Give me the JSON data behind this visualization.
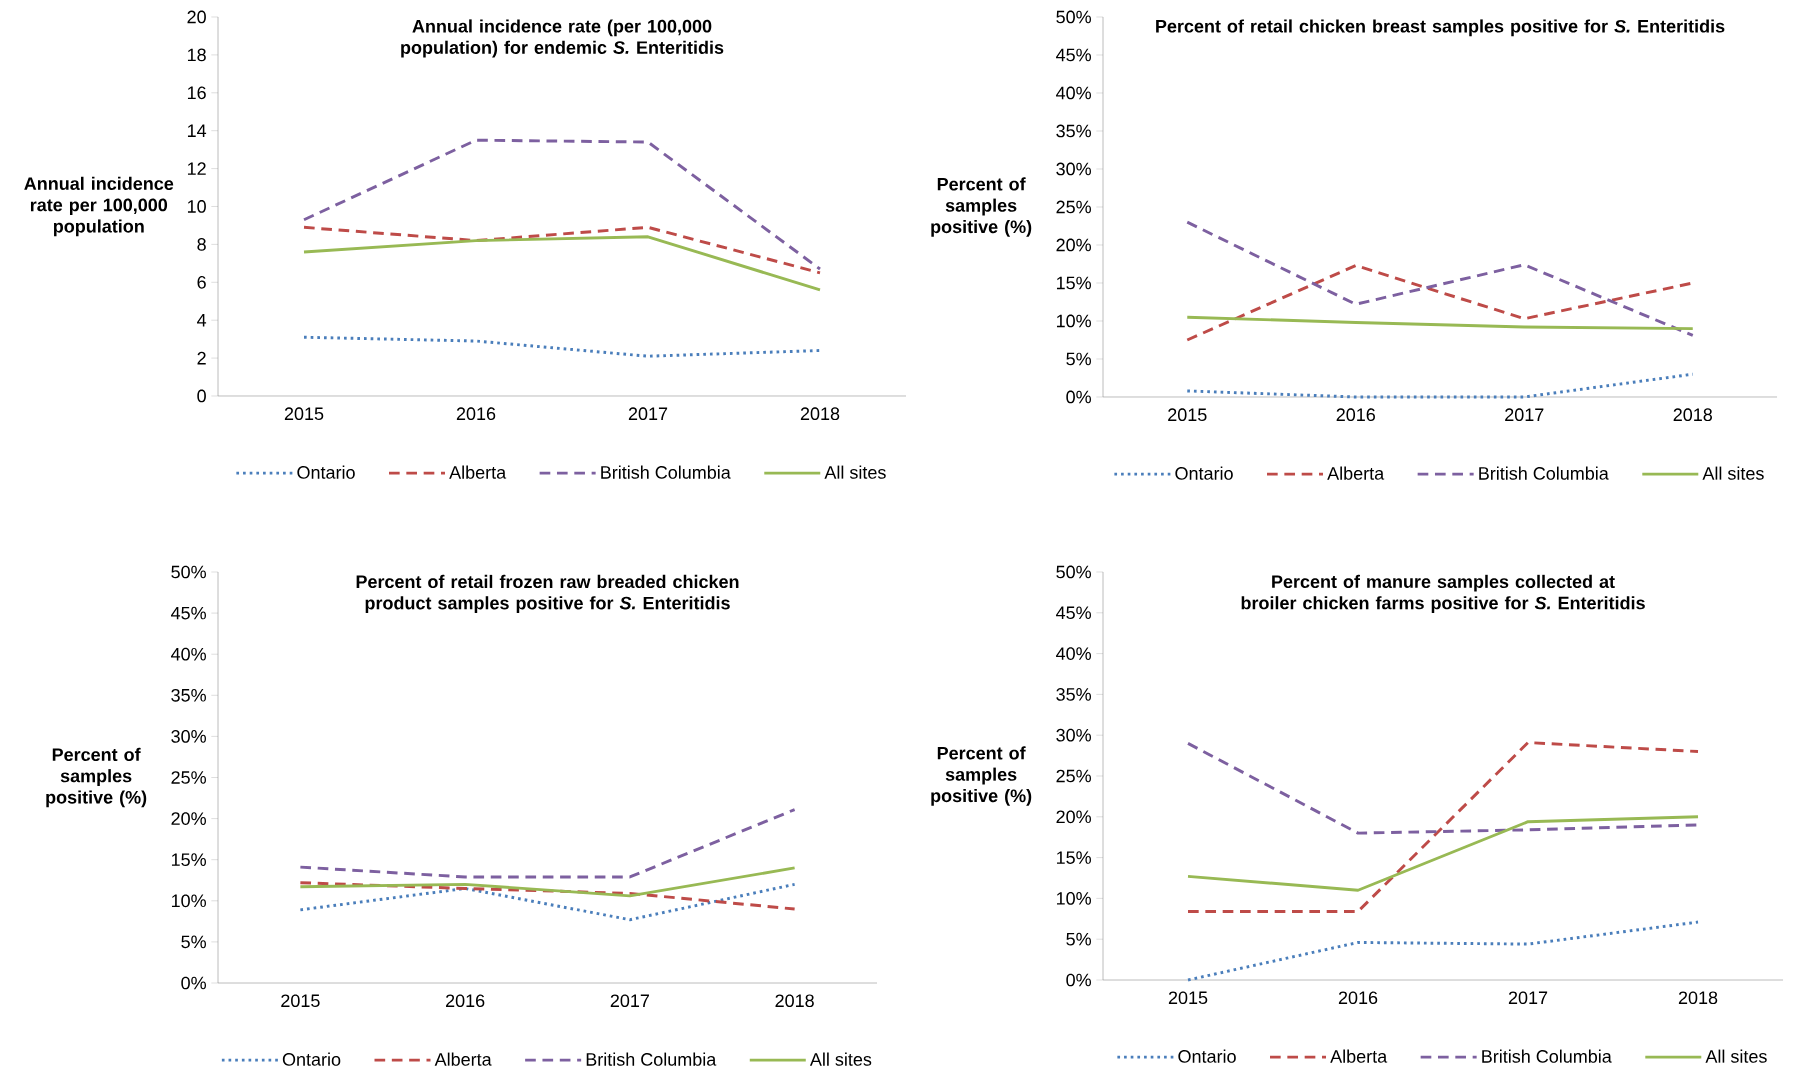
{
  "chart_data": [
    {
      "type": "line",
      "title": "Annual incidence rate (per 100,000 population) for endemic *S.* Enteritidis",
      "ylabel": "Annual incidence rate per 100,000 population",
      "categories": [
        "2015",
        "2016",
        "2017",
        "2018"
      ],
      "series": [
        {
          "name": "Ontario",
          "color": "#4a7ebb",
          "line_style": "dotted",
          "values": [
            3.1,
            2.9,
            2.1,
            2.4
          ]
        },
        {
          "name": "Alberta",
          "color": "#be4b48",
          "line_style": "dashed",
          "values": [
            8.9,
            8.2,
            8.9,
            6.5
          ]
        },
        {
          "name": "British Columbia",
          "color": "#7d60a0",
          "line_style": "dashed",
          "values": [
            9.3,
            13.5,
            13.4,
            6.7
          ]
        },
        {
          "name": "All sites",
          "color": "#98b954",
          "line_style": "solid",
          "values": [
            7.6,
            8.2,
            8.4,
            5.6
          ]
        }
      ],
      "ylim": [
        0,
        20
      ],
      "yticks": [
        0,
        2,
        4,
        6,
        8,
        10,
        12,
        14,
        16,
        18,
        20
      ],
      "legend": "bottom"
    },
    {
      "type": "line",
      "title": "Percent of retail chicken breast samples positive for *S.* Enteritidis",
      "ylabel": "Percent of samples positive (%)",
      "categories": [
        "2015",
        "2016",
        "2017",
        "2018"
      ],
      "series": [
        {
          "name": "Ontario",
          "color": "#4a7ebb",
          "line_style": "dotted",
          "values": [
            0.8,
            0,
            0,
            3.0
          ]
        },
        {
          "name": "Alberta",
          "color": "#be4b48",
          "line_style": "dashed",
          "values": [
            7.5,
            17.3,
            10.3,
            15.0
          ]
        },
        {
          "name": "British Columbia",
          "color": "#7d60a0",
          "line_style": "dashed",
          "values": [
            23.0,
            12.2,
            17.4,
            8.1
          ]
        },
        {
          "name": "All sites",
          "color": "#98b954",
          "line_style": "solid",
          "values": [
            10.5,
            9.8,
            9.2,
            9.0
          ]
        }
      ],
      "ylim": [
        0,
        50
      ],
      "yticks": [
        {
          "value": 0,
          "label": "0%"
        },
        {
          "value": 5,
          "label": "5%"
        },
        {
          "value": 10,
          "label": "10%"
        },
        {
          "value": 15,
          "label": "15%"
        },
        {
          "value": 20,
          "label": "20%"
        },
        {
          "value": 25,
          "label": "25%"
        },
        {
          "value": 30,
          "label": "30%"
        },
        {
          "value": 35,
          "label": "35%"
        },
        {
          "value": 40,
          "label": "40%"
        },
        {
          "value": 45,
          "label": "45%"
        },
        {
          "value": 50,
          "label": "50%"
        }
      ],
      "legend": "bottom"
    },
    {
      "type": "line",
      "title": "Percent of retail frozen raw breaded chicken product samples positive for *S.* Enteritidis",
      "ylabel": "Percent of samples positive (%)",
      "categories": [
        "2015",
        "2016",
        "2017",
        "2018"
      ],
      "series": [
        {
          "name": "Ontario",
          "color": "#4a7ebb",
          "line_style": "dotted",
          "values": [
            8.9,
            11.5,
            7.7,
            12.0
          ]
        },
        {
          "name": "Alberta",
          "color": "#be4b48",
          "line_style": "dashed",
          "values": [
            12.2,
            11.5,
            10.9,
            9.0
          ]
        },
        {
          "name": "British Columbia",
          "color": "#7d60a0",
          "line_style": "dashed",
          "values": [
            14.1,
            12.9,
            12.9,
            21.1
          ]
        },
        {
          "name": "All sites",
          "color": "#98b954",
          "line_style": "solid",
          "values": [
            11.7,
            12.0,
            10.6,
            14.0
          ]
        }
      ],
      "ylim": [
        0,
        50
      ],
      "yticks": [
        {
          "value": 0,
          "label": "0%"
        },
        {
          "value": 5,
          "label": "5%"
        },
        {
          "value": 10,
          "label": "10%"
        },
        {
          "value": 15,
          "label": "15%"
        },
        {
          "value": 20,
          "label": "20%"
        },
        {
          "value": 25,
          "label": "25%"
        },
        {
          "value": 30,
          "label": "30%"
        },
        {
          "value": 35,
          "label": "35%"
        },
        {
          "value": 40,
          "label": "40%"
        },
        {
          "value": 45,
          "label": "45%"
        },
        {
          "value": 50,
          "label": "50%"
        }
      ],
      "legend": "bottom"
    },
    {
      "type": "line",
      "title": "Percent of manure samples collected at broiler chicken farms positive for *S.* Enteritidis",
      "ylabel": "Percent of samples positive (%)",
      "categories": [
        "2015",
        "2016",
        "2017",
        "2018"
      ],
      "series": [
        {
          "name": "Ontario",
          "color": "#4a7ebb",
          "line_style": "dotted",
          "values": [
            0,
            4.6,
            4.4,
            7.1
          ]
        },
        {
          "name": "Alberta",
          "color": "#be4b48",
          "line_style": "dashed",
          "values": [
            8.4,
            8.4,
            29.1,
            28.0
          ]
        },
        {
          "name": "British Columbia",
          "color": "#7d60a0",
          "line_style": "dashed",
          "values": [
            29.0,
            18.0,
            18.4,
            19.0
          ]
        },
        {
          "name": "All sites",
          "color": "#98b954",
          "line_style": "solid",
          "values": [
            12.7,
            11.0,
            19.4,
            20.0
          ]
        }
      ],
      "ylim": [
        0,
        50
      ],
      "yticks": [
        {
          "value": 0,
          "label": "0%"
        },
        {
          "value": 5,
          "label": "5%"
        },
        {
          "value": 10,
          "label": "10%"
        },
        {
          "value": 15,
          "label": "15%"
        },
        {
          "value": 20,
          "label": "20%"
        },
        {
          "value": 25,
          "label": "25%"
        },
        {
          "value": 30,
          "label": "30%"
        },
        {
          "value": 35,
          "label": "35%"
        },
        {
          "value": 40,
          "label": "40%"
        },
        {
          "value": 45,
          "label": "45%"
        },
        {
          "value": 50,
          "label": "50%"
        }
      ],
      "legend": "bottom"
    }
  ]
}
